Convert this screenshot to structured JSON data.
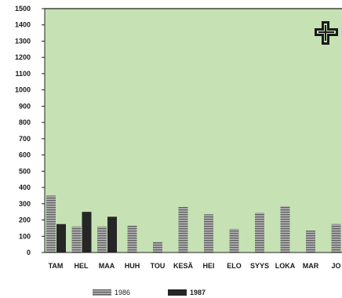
{
  "chart_data": {
    "type": "bar",
    "title": "",
    "xlabel": "",
    "ylabel": "",
    "ylim": [
      0,
      1500
    ],
    "yticks": [
      0,
      100,
      200,
      300,
      400,
      500,
      600,
      700,
      800,
      900,
      1000,
      1100,
      1200,
      1300,
      1400,
      1500
    ],
    "categories": [
      "TAM",
      "HEL",
      "MAA",
      "HUH",
      "TOU",
      "KESÄ",
      "HEI",
      "ELO",
      "SYYS",
      "LOKA",
      "MAR",
      "JO"
    ],
    "series": [
      {
        "name": "1986",
        "values": [
          350,
          160,
          160,
          165,
          65,
          280,
          235,
          145,
          245,
          285,
          135,
          175
        ]
      },
      {
        "name": "1987",
        "values": [
          175,
          250,
          220,
          null,
          null,
          null,
          null,
          null,
          null,
          null,
          null,
          null
        ]
      }
    ],
    "grid": false,
    "legend_position": "bottom",
    "colors": {
      "plot_background": "#c6e2b4",
      "bar_1986": "#9a9a9a",
      "bar_1987": "#262626",
      "axis": "#222222"
    }
  },
  "logo": {
    "name": "cross-logo-icon"
  }
}
